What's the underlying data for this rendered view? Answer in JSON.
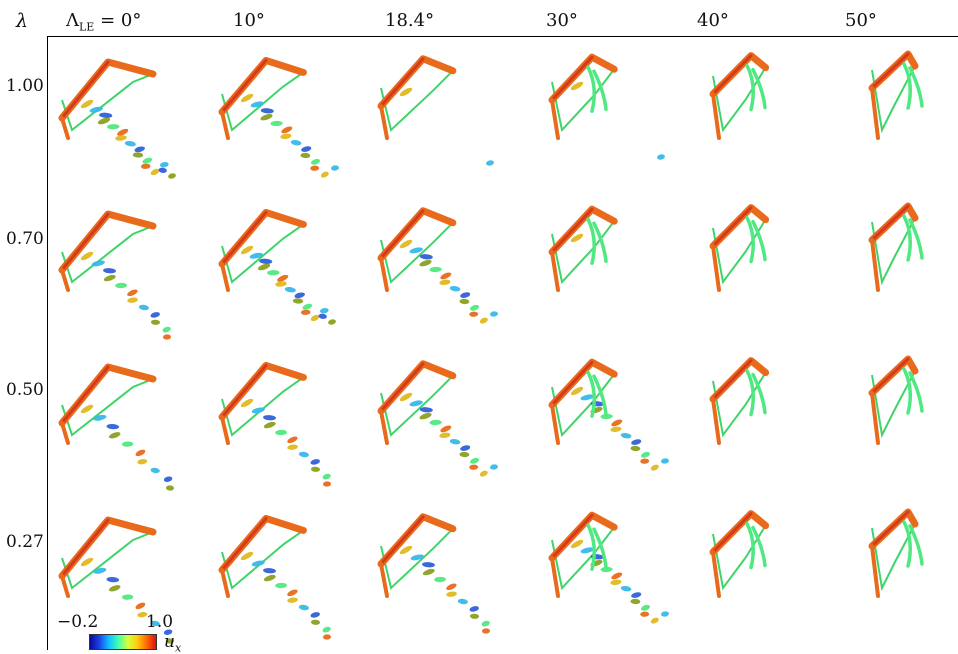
{
  "header": {
    "row_symbol": "λ",
    "col_prefix": "Λ",
    "col_sub": "LE",
    "col_eq": " = "
  },
  "columns": [
    "0°",
    "10°",
    "18.4°",
    "30°",
    "40°",
    "50°"
  ],
  "rows": [
    "1.00",
    "0.70",
    "0.50",
    "0.27"
  ],
  "colorbar": {
    "min_label": "−0.2",
    "max_label": "1.0",
    "quantity": "u",
    "subscript": "x"
  },
  "colors": {
    "edge_orange": "#e86a1a",
    "edge_red": "#d43b1c",
    "outline_green": "#3fd46a",
    "vortex_yellow": "#e0b820",
    "vortex_cyan": "#38b8e8",
    "vortex_blue": "#3060d8",
    "vortex_olive": "#8aa020",
    "vortex_green": "#50e880"
  }
}
